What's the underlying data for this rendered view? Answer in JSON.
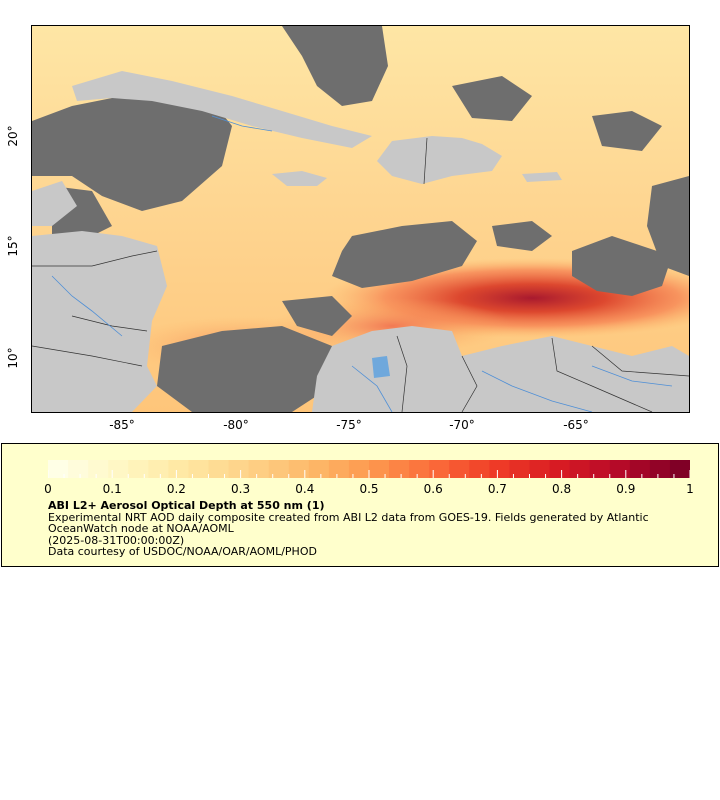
{
  "map": {
    "x_ticks": [
      "-85°",
      "-80°",
      "-75°",
      "-70°",
      "-65°"
    ],
    "y_ticks": [
      "20°",
      "15°",
      "10°"
    ]
  },
  "colorbar": {
    "labels": [
      "0",
      "0.1",
      "0.2",
      "0.3",
      "0.4",
      "0.5",
      "0.6",
      "0.7",
      "0.8",
      "0.9",
      "1"
    ],
    "colors": [
      "#ffffe6",
      "#fff7c4",
      "#ffe8a3",
      "#fed38a",
      "#fdbb6c",
      "#fd9a4f",
      "#fb6d3a",
      "#f03d27",
      "#d91c23",
      "#b70a28",
      "#800026"
    ]
  },
  "legend": {
    "title": "ABI L2+ Aerosol Optical Depth at 550 nm (1)",
    "line1": "Experimental NRT AOD daily composite created from ABI L2 data from GOES-19. Fields generated by Atlantic OceanWatch node at NOAA/AOML",
    "line2": "(2025-08-31T00:00:00Z)",
    "line3": "Data courtesy of USDOC/NOAA/OAR/AOML/PHOD"
  },
  "colors": {
    "land": "#c8c8c8",
    "cloud": "#6e6e6e",
    "rivers": "#4f8fd6",
    "borders": "#555555"
  }
}
